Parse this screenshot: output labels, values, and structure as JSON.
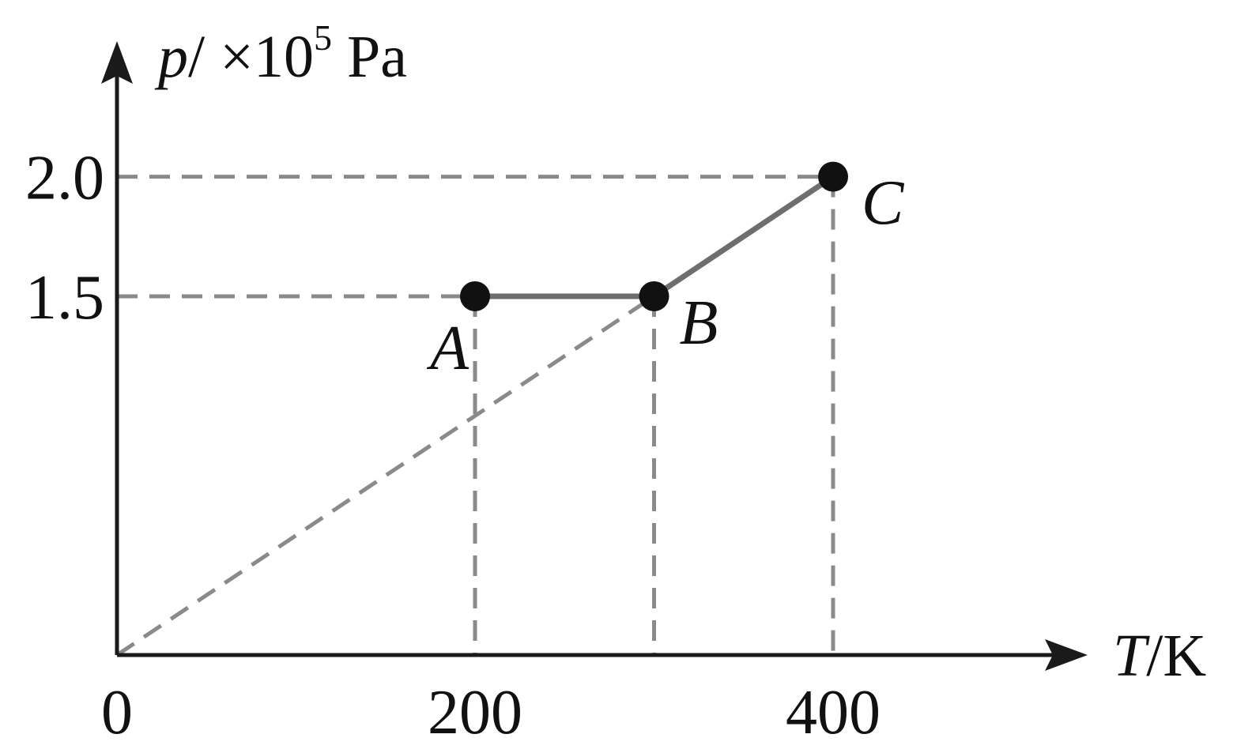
{
  "chart_data": {
    "type": "line",
    "title": "",
    "xlabel": {
      "symbol": "T",
      "unit": "/K"
    },
    "ylabel": {
      "symbol": "p",
      "unit": "/ ×10",
      "exponent": "5",
      "unit2": " Pa"
    },
    "xlim": [
      0,
      500
    ],
    "ylim": [
      0,
      2.7
    ],
    "x_ticks": [
      {
        "value": 0,
        "label": "0"
      },
      {
        "value": 200,
        "label": "200"
      },
      {
        "value": 400,
        "label": "400"
      }
    ],
    "y_ticks": [
      {
        "value": 1.5,
        "label": "1.5"
      },
      {
        "value": 2.0,
        "label": "2.0"
      }
    ],
    "points": [
      {
        "name": "A",
        "x": 200,
        "y": 1.5
      },
      {
        "name": "B",
        "x": 300,
        "y": 1.5
      },
      {
        "name": "C",
        "x": 400,
        "y": 2.0
      }
    ],
    "series": [
      {
        "points": [
          [
            200,
            1.5
          ],
          [
            300,
            1.5
          ],
          [
            400,
            2.0
          ]
        ]
      }
    ],
    "guide_line": [
      [
        0,
        0
      ],
      [
        300,
        1.5
      ]
    ],
    "grid": false,
    "colors": {
      "axis": "#1a1a1a",
      "curve": "#6e6e6e",
      "guide": "#8a8a8a",
      "point": "#111111"
    }
  }
}
